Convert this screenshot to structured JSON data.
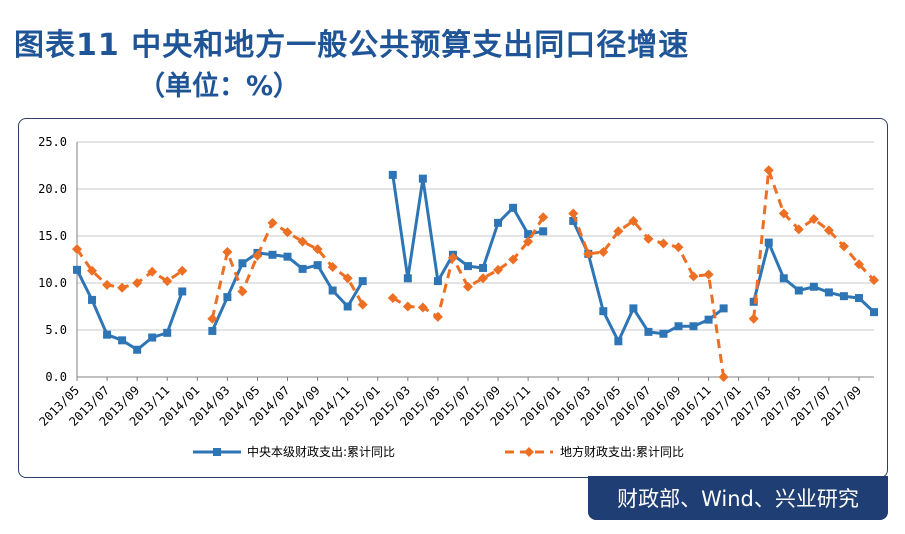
{
  "title": "图表11  中央和地方一般公共预算支出同口径增速",
  "subtitle": "（单位：%）",
  "source": "财政部、Wind、兴业研究",
  "colors": {
    "central": "#2e75b6",
    "local": "#ed6f24",
    "title": "#1f5597",
    "source_bg": "#1f3e73"
  },
  "chart_data": {
    "type": "line",
    "ylim": [
      0,
      25
    ],
    "yticks": [
      "0.0",
      "5.0",
      "10.0",
      "15.0",
      "20.0",
      "25.0"
    ],
    "grid": "horizontal",
    "legend_position": "bottom",
    "x": [
      "2013/05",
      "2013/06",
      "2013/07",
      "2013/08",
      "2013/09",
      "2013/10",
      "2013/11",
      "2013/12",
      "2014/01",
      "2014/02",
      "2014/03",
      "2014/04",
      "2014/05",
      "2014/06",
      "2014/07",
      "2014/08",
      "2014/09",
      "2014/10",
      "2014/11",
      "2014/12",
      "2015/01",
      "2015/02",
      "2015/03",
      "2015/04",
      "2015/05",
      "2015/06",
      "2015/07",
      "2015/08",
      "2015/09",
      "2015/10",
      "2015/11",
      "2015/12",
      "2016/01",
      "2016/02",
      "2016/03",
      "2016/04",
      "2016/05",
      "2016/06",
      "2016/07",
      "2016/08",
      "2016/09",
      "2016/10",
      "2016/11",
      "2016/12",
      "2017/01",
      "2017/02",
      "2017/03",
      "2017/04",
      "2017/05",
      "2017/06",
      "2017/07",
      "2017/08",
      "2017/09",
      "2017/10"
    ],
    "xtick_labels": [
      "2013/05",
      "2013/07",
      "2013/09",
      "2013/11",
      "2014/01",
      "2014/03",
      "2014/05",
      "2014/07",
      "2014/09",
      "2014/11",
      "2015/01",
      "2015/03",
      "2015/05",
      "2015/07",
      "2015/09",
      "2015/11",
      "2016/01",
      "2016/03",
      "2016/05",
      "2016/07",
      "2016/09",
      "2016/11",
      "2017/01",
      "2017/03",
      "2017/05",
      "2017/07",
      "2017/09"
    ],
    "series": [
      {
        "name": "中央本级财政支出:累计同比",
        "style": "solid-square",
        "values": [
          11.4,
          8.2,
          4.5,
          3.9,
          2.9,
          4.2,
          4.7,
          9.1,
          null,
          4.9,
          8.5,
          12.1,
          13.2,
          13.0,
          12.8,
          11.5,
          11.9,
          9.2,
          7.5,
          10.2,
          null,
          21.5,
          10.5,
          21.1,
          10.2,
          13.0,
          11.8,
          11.6,
          16.4,
          18.0,
          15.2,
          15.5,
          null,
          16.6,
          13.1,
          7.0,
          3.8,
          7.3,
          4.8,
          4.6,
          5.4,
          5.4,
          6.1,
          7.3,
          null,
          8.0,
          14.3,
          10.5,
          9.2,
          9.6,
          9.0,
          8.6,
          8.4,
          6.9
        ]
      },
      {
        "name": "地方财政支出:累计同比",
        "style": "dashed-diamond",
        "values": [
          13.6,
          11.3,
          9.8,
          9.5,
          10.0,
          11.2,
          10.2,
          11.3,
          null,
          6.2,
          13.3,
          9.1,
          12.9,
          16.4,
          15.4,
          14.4,
          13.6,
          11.7,
          10.5,
          7.7,
          null,
          8.4,
          7.5,
          7.4,
          6.4,
          12.7,
          9.6,
          10.5,
          11.4,
          12.5,
          14.4,
          17.0,
          null,
          17.4,
          13.1,
          13.3,
          15.5,
          16.6,
          14.7,
          14.2,
          13.8,
          10.7,
          10.9,
          0.0,
          null,
          6.2,
          22.0,
          17.4,
          15.7,
          16.8,
          15.6,
          13.9,
          12.0,
          10.3
        ]
      }
    ]
  }
}
